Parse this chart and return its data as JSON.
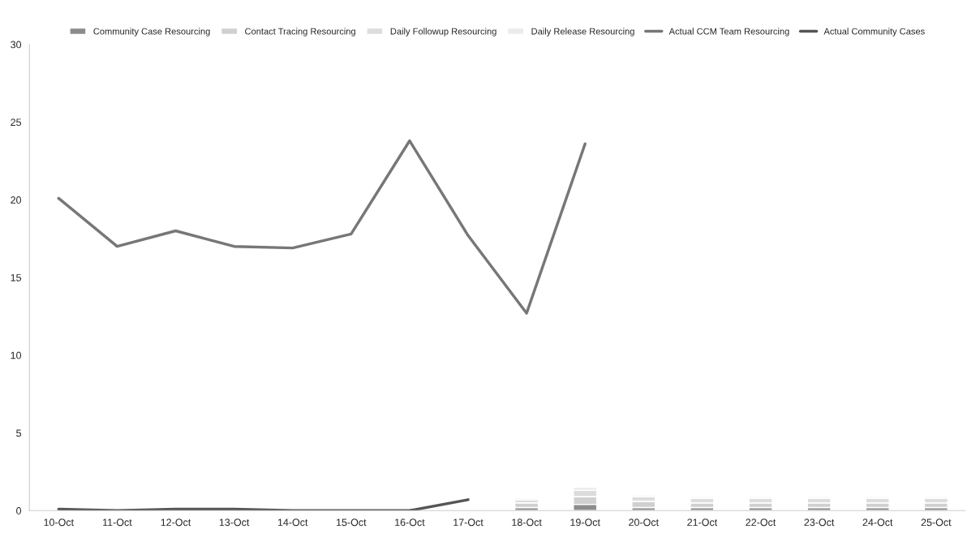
{
  "chart_data": {
    "type": "bar",
    "stacked": true,
    "categories": [
      "10-Oct",
      "11-Oct",
      "12-Oct",
      "13-Oct",
      "14-Oct",
      "15-Oct",
      "16-Oct",
      "17-Oct",
      "18-Oct",
      "19-Oct",
      "20-Oct",
      "21-Oct",
      "22-Oct",
      "23-Oct",
      "24-Oct",
      "25-Oct"
    ],
    "series": [
      {
        "name": "Community Case Resourcing",
        "color": "#8c8c8c",
        "values": [
          null,
          null,
          null,
          null,
          null,
          null,
          null,
          null,
          0.2,
          0.4,
          0.2,
          0.2,
          0.2,
          0.2,
          0.2,
          0.2
        ]
      },
      {
        "name": "Contact Tracing Resourcing",
        "color": "#d0d0d0",
        "values": [
          null,
          null,
          null,
          null,
          null,
          null,
          null,
          null,
          0.3,
          0.5,
          0.4,
          0.3,
          0.3,
          0.3,
          0.3,
          0.3
        ]
      },
      {
        "name": "Daily Followup Resourcing",
        "color": "#dcdcdc",
        "values": [
          null,
          null,
          null,
          null,
          null,
          null,
          null,
          null,
          0.2,
          0.4,
          0.3,
          0.3,
          0.3,
          0.3,
          0.3,
          0.3
        ]
      },
      {
        "name": "Daily Release Resourcing",
        "color": "#ebebeb",
        "values": [
          null,
          null,
          null,
          null,
          null,
          null,
          null,
          null,
          0.1,
          0.2,
          0.1,
          0.1,
          0.1,
          0.1,
          0.1,
          0.1
        ]
      },
      {
        "name": "Actual CCM Team Resourcing",
        "type": "line",
        "color": "#777777",
        "values": [
          20.1,
          17.0,
          18.0,
          17.0,
          16.9,
          17.8,
          23.8,
          17.7,
          12.7,
          23.6,
          null,
          null,
          null,
          null,
          null,
          null
        ]
      },
      {
        "name": "Actual Community Cases",
        "type": "line",
        "color": "#555555",
        "values": [
          0.1,
          0,
          0.1,
          0.1,
          0,
          0,
          0,
          0.7,
          null,
          null,
          null,
          null,
          null,
          null,
          null,
          null
        ]
      }
    ],
    "ylim": [
      0,
      30
    ],
    "yticks": [
      0,
      5,
      10,
      15,
      20,
      25,
      30
    ],
    "grid": false,
    "legend": "top"
  }
}
